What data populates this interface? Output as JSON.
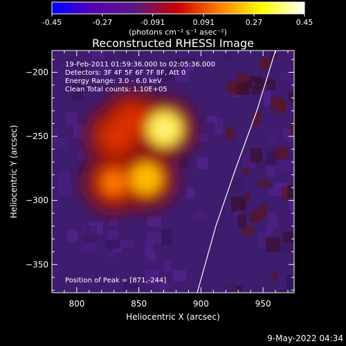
{
  "chart_data": {
    "type": "heatmap",
    "title": "Reconstructed RHESSI Image",
    "xlabel": "Heliocentric X (arcsec)",
    "ylabel": "Heliocentric Y (arcsec)",
    "xlim": [
      780,
      975
    ],
    "ylim": [
      -372,
      -183
    ],
    "x_ticks": [
      800,
      850,
      900,
      950
    ],
    "y_ticks": [
      -200,
      -250,
      -300,
      -350
    ],
    "colorbar": {
      "min": -0.45,
      "max": 0.45,
      "ticks": [
        "-0.45",
        "-0.27",
        "-0.091",
        "0.091",
        "0.27",
        "0.45"
      ],
      "unit_label": "(photons cm⁻² s⁻¹ asec⁻²)",
      "colormap": [
        "#0000ff",
        "#5a00b4",
        "#5a1a80",
        "#cc0000",
        "#ff8000",
        "#ffff00",
        "#ffffff"
      ]
    },
    "annotations": [
      "19-Feb-2011 01:59:36.000 to 02:05:36.000",
      "Detectors: 3F 4F 5F 6F 7F 8F, Att 0",
      "Energy Range: 3.0 - 6.0 keV",
      "Clean     Total counts: 1.10E+05"
    ],
    "peak_label": "Position of Peak = [871,-244]",
    "peak": [
      871,
      -244
    ],
    "sources": [
      {
        "x": 871,
        "y": -244,
        "value": 0.44
      },
      {
        "x": 856,
        "y": -283,
        "value": 0.37
      },
      {
        "x": 830,
        "y": -286,
        "value": 0.26
      },
      {
        "x": 832,
        "y": -250,
        "value": 0.22
      },
      {
        "x": 845,
        "y": -238,
        "value": 0.2
      }
    ],
    "limb_curve": [
      [
        960,
        -183
      ],
      [
        945,
        -230
      ],
      [
        928,
        -275
      ],
      [
        912,
        -320
      ],
      [
        897,
        -372
      ]
    ],
    "footer": "9-May-2022 04:34"
  }
}
